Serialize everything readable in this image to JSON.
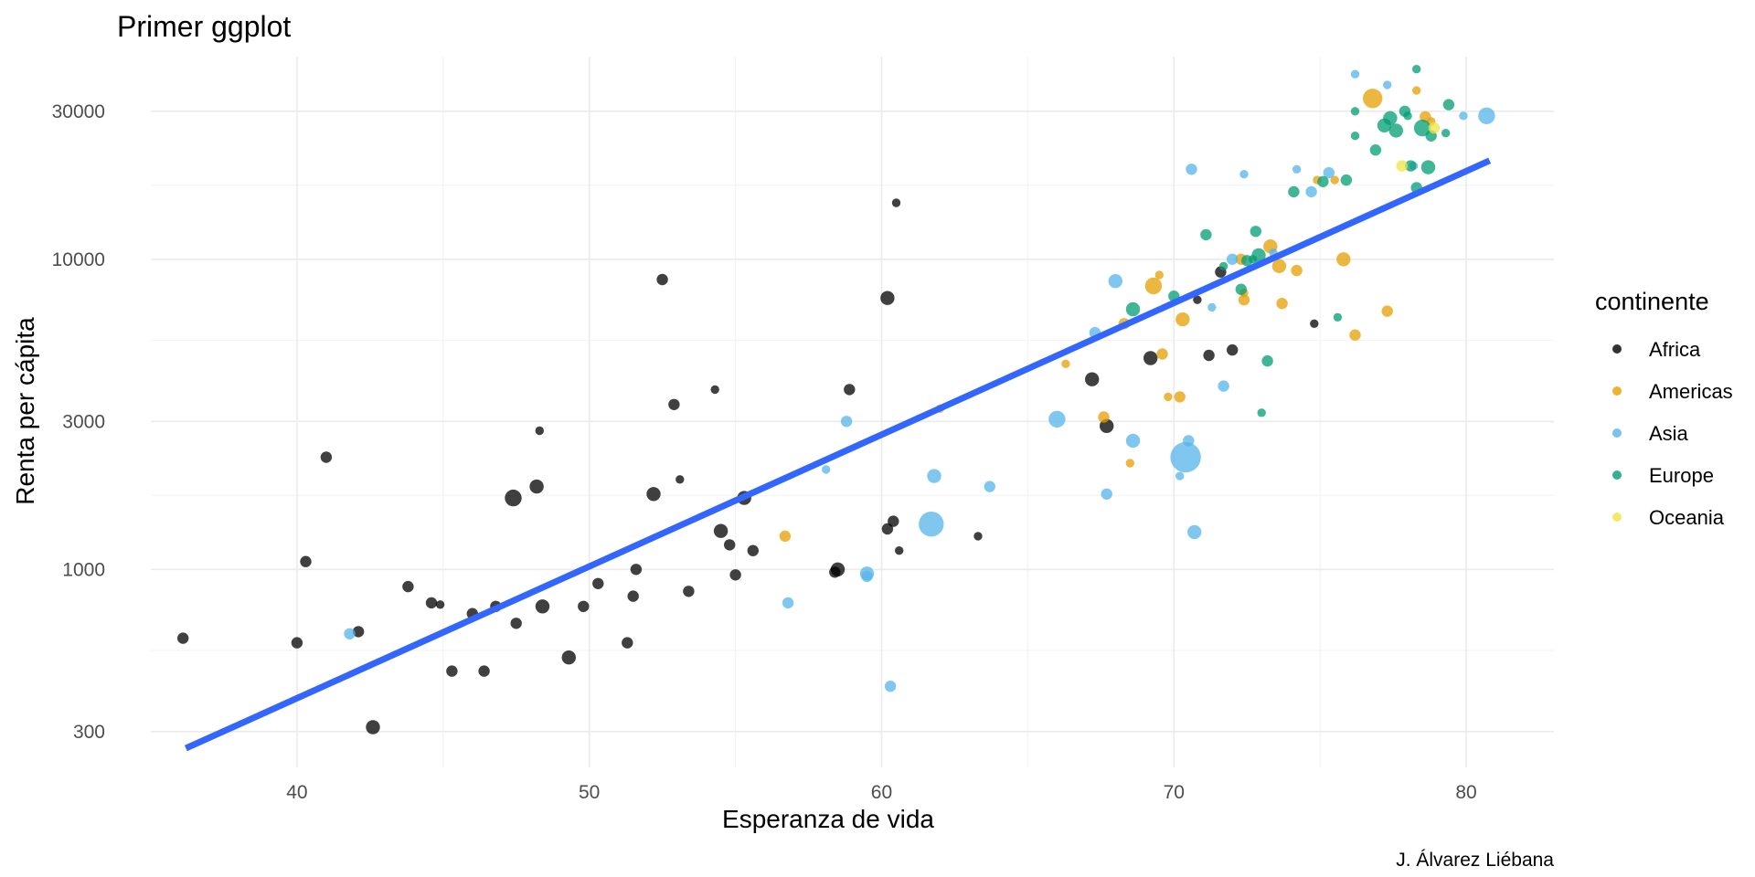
{
  "chart_data": {
    "type": "scatter",
    "title": "Primer ggplot",
    "caption": "J. Álvarez Liébana",
    "xlabel": "Esperanza de vida",
    "ylabel": "Renta per cápita",
    "xlim": [
      35,
      83
    ],
    "ylim": [
      230,
      45000
    ],
    "y_scale": "log10",
    "x_ticks": [
      40,
      50,
      60,
      70,
      80
    ],
    "y_ticks": [
      300,
      1000,
      3000,
      10000,
      30000
    ],
    "y_tick_labels": [
      "300",
      "1000",
      "3000",
      "10000",
      "30000"
    ],
    "grid": true,
    "legend": {
      "title": "continente",
      "placement": "right",
      "entries": [
        {
          "name": "Africa",
          "color": "#000000"
        },
        {
          "name": "Americas",
          "color": "#E69F00"
        },
        {
          "name": "Asia",
          "color": "#56B4E9"
        },
        {
          "name": "Europe",
          "color": "#009E73"
        },
        {
          "name": "Oceania",
          "color": "#F0E442"
        }
      ]
    },
    "trend_line": {
      "color": "#3366FF",
      "points": [
        [
          36.2,
          265
        ],
        [
          80.8,
          20800
        ]
      ]
    },
    "series": [
      {
        "name": "Africa",
        "color": "#000000",
        "points": [
          [
            36.1,
            600,
            2
          ],
          [
            40.0,
            580,
            2
          ],
          [
            41.0,
            2300,
            2
          ],
          [
            40.3,
            1060,
            2
          ],
          [
            42.1,
            630,
            2
          ],
          [
            42.6,
            310,
            3
          ],
          [
            43.8,
            880,
            2
          ],
          [
            44.6,
            780,
            2
          ],
          [
            44.9,
            770,
            1
          ],
          [
            45.3,
            470,
            2
          ],
          [
            46.0,
            720,
            2
          ],
          [
            46.4,
            470,
            2
          ],
          [
            46.8,
            760,
            2
          ],
          [
            47.4,
            1700,
            4
          ],
          [
            47.5,
            670,
            2
          ],
          [
            48.2,
            1850,
            3
          ],
          [
            48.3,
            2800,
            1
          ],
          [
            48.4,
            760,
            3
          ],
          [
            49.3,
            520,
            3
          ],
          [
            49.8,
            760,
            2
          ],
          [
            50.3,
            900,
            2
          ],
          [
            51.3,
            580,
            2
          ],
          [
            51.5,
            820,
            2
          ],
          [
            51.6,
            1000,
            2
          ],
          [
            52.2,
            1750,
            3
          ],
          [
            52.5,
            8600,
            2
          ],
          [
            52.9,
            3400,
            2
          ],
          [
            53.1,
            1950,
            1
          ],
          [
            53.4,
            850,
            2
          ],
          [
            54.3,
            3800,
            1
          ],
          [
            54.5,
            1330,
            3
          ],
          [
            54.8,
            1200,
            2
          ],
          [
            55.0,
            960,
            2
          ],
          [
            55.3,
            1700,
            3
          ],
          [
            55.6,
            1150,
            2
          ],
          [
            58.4,
            980,
            2
          ],
          [
            58.5,
            1000,
            3
          ],
          [
            58.9,
            3800,
            2
          ],
          [
            60.2,
            1350,
            2
          ],
          [
            60.2,
            7500,
            3
          ],
          [
            60.4,
            1430,
            2
          ],
          [
            60.5,
            15200,
            1
          ],
          [
            60.6,
            1150,
            1
          ],
          [
            63.3,
            1280,
            1
          ],
          [
            67.2,
            4100,
            3
          ],
          [
            67.7,
            2900,
            3
          ],
          [
            69.2,
            4800,
            3
          ],
          [
            71.2,
            4900,
            2
          ],
          [
            71.6,
            9100,
            2
          ],
          [
            70.8,
            7400,
            1
          ],
          [
            74.8,
            6200,
            1
          ],
          [
            72.0,
            5100,
            2
          ]
        ]
      },
      {
        "name": "Americas",
        "color": "#E69F00",
        "points": [
          [
            56.7,
            1280,
            2
          ],
          [
            62.0,
            3300,
            1
          ],
          [
            66.3,
            4600,
            1
          ],
          [
            67.6,
            3100,
            2
          ],
          [
            68.3,
            6200,
            2
          ],
          [
            69.3,
            8200,
            4
          ],
          [
            69.5,
            8900,
            1
          ],
          [
            69.6,
            4950,
            2
          ],
          [
            69.8,
            3600,
            1
          ],
          [
            70.2,
            3600,
            2
          ],
          [
            70.3,
            6400,
            3
          ],
          [
            72.3,
            10000,
            2
          ],
          [
            72.4,
            7400,
            2
          ],
          [
            72.4,
            7800,
            1
          ],
          [
            73.3,
            11000,
            3
          ],
          [
            73.6,
            9500,
            3
          ],
          [
            73.7,
            7200,
            2
          ],
          [
            74.2,
            9200,
            2
          ],
          [
            74.9,
            18000,
            1
          ],
          [
            75.5,
            18000,
            1
          ],
          [
            75.8,
            10000,
            3
          ],
          [
            76.2,
            5700,
            2
          ],
          [
            77.3,
            6800,
            2
          ],
          [
            78.3,
            35000,
            1
          ],
          [
            78.6,
            28800,
            2
          ],
          [
            78.8,
            27800,
            1
          ],
          [
            76.8,
            33000,
            5
          ],
          [
            68.5,
            2200,
            1
          ]
        ]
      },
      {
        "name": "Asia",
        "color": "#56B4E9",
        "points": [
          [
            41.8,
            620,
            2
          ],
          [
            56.8,
            780,
            2
          ],
          [
            58.1,
            2100,
            1
          ],
          [
            58.8,
            3000,
            2
          ],
          [
            59.5,
            970,
            3
          ],
          [
            59.5,
            950,
            2
          ],
          [
            60.3,
            420,
            2
          ],
          [
            61.7,
            1400,
            7
          ],
          [
            61.8,
            2000,
            3
          ],
          [
            63.7,
            1850,
            2
          ],
          [
            66.0,
            3050,
            4
          ],
          [
            67.3,
            5800,
            2
          ],
          [
            67.7,
            1750,
            2
          ],
          [
            68.0,
            8500,
            3
          ],
          [
            68.6,
            2600,
            3
          ],
          [
            70.2,
            2000,
            1
          ],
          [
            70.4,
            2300,
            9
          ],
          [
            70.5,
            2600,
            2
          ],
          [
            70.6,
            19500,
            2
          ],
          [
            70.7,
            1320,
            3
          ],
          [
            71.3,
            7000,
            1
          ],
          [
            71.7,
            3900,
            2
          ],
          [
            72.0,
            10000,
            2
          ],
          [
            72.4,
            18800,
            1
          ],
          [
            73.4,
            10500,
            1
          ],
          [
            74.2,
            19500,
            1
          ],
          [
            74.7,
            16500,
            2
          ],
          [
            75.3,
            19000,
            2
          ],
          [
            76.2,
            39500,
            1
          ],
          [
            77.3,
            36500,
            1
          ],
          [
            78.2,
            20000,
            1
          ],
          [
            79.9,
            29000,
            1
          ],
          [
            80.7,
            29000,
            4
          ]
        ]
      },
      {
        "name": "Europe",
        "color": "#009E73",
        "points": [
          [
            68.6,
            6900,
            3
          ],
          [
            70.0,
            7600,
            2
          ],
          [
            71.1,
            12000,
            2
          ],
          [
            71.7,
            9500,
            1
          ],
          [
            72.3,
            8000,
            2
          ],
          [
            72.5,
            9900,
            2
          ],
          [
            72.7,
            10000,
            1
          ],
          [
            72.8,
            12300,
            2
          ],
          [
            72.9,
            10300,
            3
          ],
          [
            73.0,
            3200,
            1
          ],
          [
            73.2,
            4700,
            2
          ],
          [
            74.1,
            16500,
            2
          ],
          [
            75.1,
            17800,
            2
          ],
          [
            75.6,
            6500,
            1
          ],
          [
            75.9,
            18000,
            2
          ],
          [
            76.2,
            30000,
            1
          ],
          [
            76.2,
            25000,
            1
          ],
          [
            76.9,
            22500,
            2
          ],
          [
            77.2,
            27000,
            3
          ],
          [
            77.4,
            28500,
            3
          ],
          [
            77.6,
            26000,
            3
          ],
          [
            77.9,
            30000,
            2
          ],
          [
            78.1,
            20000,
            2
          ],
          [
            78.3,
            41000,
            1
          ],
          [
            78.5,
            26500,
            4
          ],
          [
            78.7,
            19800,
            3
          ],
          [
            78.8,
            25000,
            2
          ],
          [
            79.3,
            25500,
            1
          ],
          [
            79.4,
            31500,
            2
          ],
          [
            78.3,
            17000,
            2
          ],
          [
            78.0,
            29000,
            1
          ]
        ]
      },
      {
        "name": "Oceania",
        "color": "#F0E442",
        "points": [
          [
            77.8,
            20000,
            2
          ],
          [
            78.9,
            26500,
            2
          ]
        ]
      }
    ]
  }
}
